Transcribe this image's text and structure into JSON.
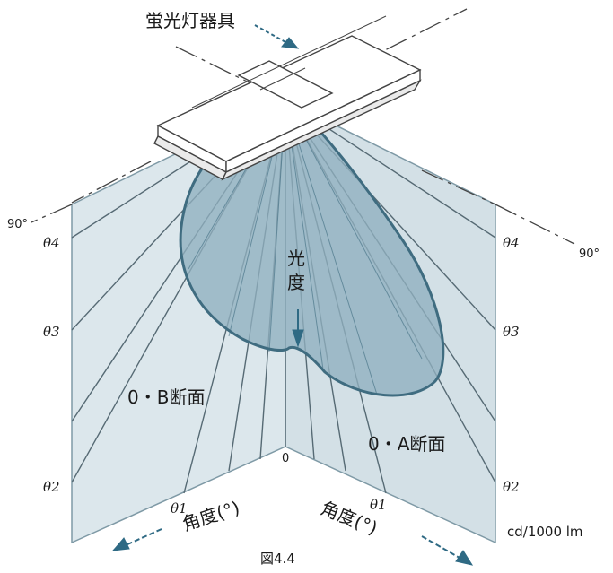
{
  "figure": {
    "fixture_label": "蛍光灯器具",
    "luminous_intensity_label_1": "光",
    "luminous_intensity_label_2": "度",
    "left_plane_label": "0・B断面",
    "right_plane_label": "0・A断面",
    "angle_label_left": "角度(°)",
    "angle_label_right": "角度(°)",
    "origin_label": "0",
    "unit_label": "cd/1000 lm",
    "caption": "図4.4",
    "left_90": "90°",
    "right_90": "90°",
    "theta_left": [
      "θ4",
      "θ3",
      "θ2",
      "θ1"
    ],
    "theta_right": [
      "θ4",
      "θ3",
      "θ2",
      "θ1"
    ]
  },
  "colors": {
    "plane_fill": "#dce7ec",
    "plane_stroke": "#7f9aa6",
    "curve_fill": "#8fb0bf",
    "curve_stroke": "#3f6c80",
    "arrow": "#2f6a84",
    "line": "#566a74"
  }
}
